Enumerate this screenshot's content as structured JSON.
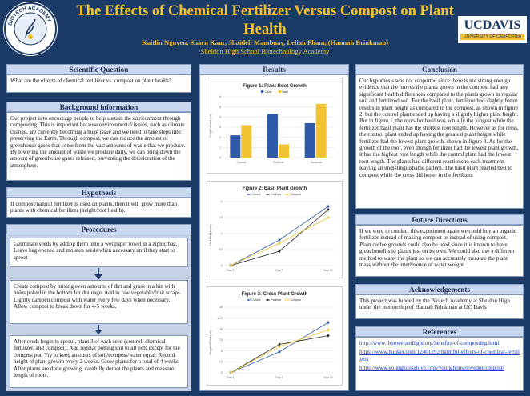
{
  "header": {
    "title": "The Effects of Chemical Fertilizer Versus Compost on Plant Health",
    "authors": "Kaitlin Nguyen, Sharn Kaur, Shaidell Mambuay, Lelian Pham, (Hannah Brinkman)",
    "school": "Sheldon High School Biotechnology Academy",
    "left_logo_text": "BIOTECH ACADEMY",
    "right_logo_main": "UCDAVIS",
    "right_logo_sub": "UNIVERSITY OF CALIFORNIA"
  },
  "sections": {
    "question": {
      "heading": "Scientific Question",
      "body": "What are the effects of chemical fertilizer vs. compost on plant health?"
    },
    "background": {
      "heading": "Background information",
      "body": "Our project is to encourage people to help sustain the environment through composting. This is important because environmental issues, such as climate change, are currently becoming a huge issue and we need to take steps into preserving the Earth. Through compost, we can reduce the amount of greenhouse gases that come from the vast amounts of waste that we produce. By lowering the amount of waste we produce daily, we can bring down the amount of greenhouse gases released, preventing the deterioration of the atmosphere."
    },
    "hypothesis": {
      "heading": "Hypothesis",
      "body": "If compost/natural fertilizer is used on plants, then it will grow more than plants with chemical fertilizer (height/root health)."
    },
    "procedures": {
      "heading": "Procedures",
      "steps": [
        "Germinate seeds by adding them onto a wet paper towel in a ziploc bag. Leave bag opened and moisten seeds when necessary until they start to sprout",
        "Create compost by mixing even amounts of dirt and grass in a bin with holes poked in the bottom for drainage. Add in raw vegetable/fruit scraps. Lightly dampen compost with water every few days when necessary. Allow compost to break down for 4-5 weeks.",
        "After seeds begin to sprout, plant 3 of each seed (control, chemical fertilizer, and compost). Add regular potting soil to all pots except for the compost pot. Try to keep amounts of soil/compost/water equal. Record height of plant growth every 2 weeks. Grow plants for a total of 4 weeks. After plants are done growing, carefully deroot the plants and measure length of roots."
      ]
    },
    "results": {
      "heading": "Results"
    },
    "conclusion": {
      "heading": "Conclusion",
      "body": "Our hypothesis was not supported since there is not strong enough evidence that the proves the plants grown in the compost had any significant health differences compared to the plants grown in regular soil and fertilized soil. For the basil plant, fertilizer had slightly better results in plant height as compared to the compost, as shown in figure 2, but the control plant ended up having a slightly higher plant height. But in figure 1, the roots for basil was actually the longest while the fertilizer basil plant has the shortest root length. However as for cress, the control plant ended up having the greatest plant height while fertilizer had the lowest plant growth, shown in figure 3. As for the growth of the root, even though fertilizer had the lowest plant growth, it has the highest root length while the control plant had the lowest root length. The plants had different reactions to each treatment leaving an undistinguishable pattern. The basil plant reacted best to compost while the cress did better in the fertilizer."
    },
    "future": {
      "heading": "Future Directions",
      "body": "If we were to conduct this experiment again we could buy an organic fertilizer instead of making compost or instead of using compost. Plain coffee grounds could also be used since it is known to have great benefits to plants just on its own. We could also use a different method to water the plant so we can accurately measure the plant mass without the interference of water weight."
    },
    "acknowledgements": {
      "heading": "Acknowledgements",
      "body": "This project was funded by the Biotech Academy at Sheldon High under the mentorship of Hannah Brinkman at UC Davis"
    },
    "references": {
      "heading": "References",
      "links": [
        "http://www.lbpowerandlight.org/benefits-of-composting.html",
        "https://www.hunker.com/12401292/harmful-effects-of-chemical-fertilizers",
        "https://www.younghouselove.com/younghouselovedotcompost/"
      ]
    }
  },
  "colors": {
    "control": "#2e5aa8",
    "fertilizer": "#222222",
    "compost": "#f2c230",
    "header_bg": "#1b3a66",
    "title_gold": "#f2c230"
  },
  "chart_data": [
    {
      "type": "bar",
      "title": "Figure 1: Plant Root Growth",
      "categories": [
        "Control",
        "Fertilizer",
        "Compost"
      ],
      "series": [
        {
          "name": "Cress",
          "values": [
            2.2,
            4.3,
            3.4
          ]
        },
        {
          "name": "Basil",
          "values": [
            3.2,
            1.3,
            5.3
          ]
        }
      ],
      "ylabel": "Length of root (cm)",
      "ylim": [
        0,
        6
      ],
      "yticks": [
        0,
        1,
        2,
        3,
        4,
        5,
        6
      ]
    },
    {
      "type": "line",
      "title": "Figure 2: Basil Plant Growth",
      "x": [
        "Day 1",
        "Day 7",
        "Day 14"
      ],
      "series": [
        {
          "name": "Control",
          "values": [
            0.0,
            0.8,
            1.85
          ]
        },
        {
          "name": "Fertilizer",
          "values": [
            0.0,
            0.45,
            1.75
          ]
        },
        {
          "name": "Compost",
          "values": [
            0.0,
            0.7,
            1.5
          ]
        }
      ],
      "ylabel": "Plant Height (cm)",
      "ylim": [
        0,
        2
      ],
      "yticks": [
        0,
        0.5,
        1,
        1.5,
        2
      ]
    },
    {
      "type": "line",
      "title": "Figure 3: Cress Plant Growth",
      "x": [
        "Day 1",
        "Day 7",
        "Day 14"
      ],
      "series": [
        {
          "name": "Control",
          "values": [
            0.0,
            4.8,
            11.5
          ]
        },
        {
          "name": "Fertilizer",
          "values": [
            0.0,
            6.5,
            8.5
          ]
        },
        {
          "name": "Compost",
          "values": [
            0.0,
            6.0,
            9.8
          ]
        }
      ],
      "ylabel": "Height of Plant (cm)",
      "ylim": [
        0,
        15
      ],
      "yticks": [
        0,
        2.5,
        5,
        7.5,
        10,
        12.5,
        15
      ]
    }
  ]
}
